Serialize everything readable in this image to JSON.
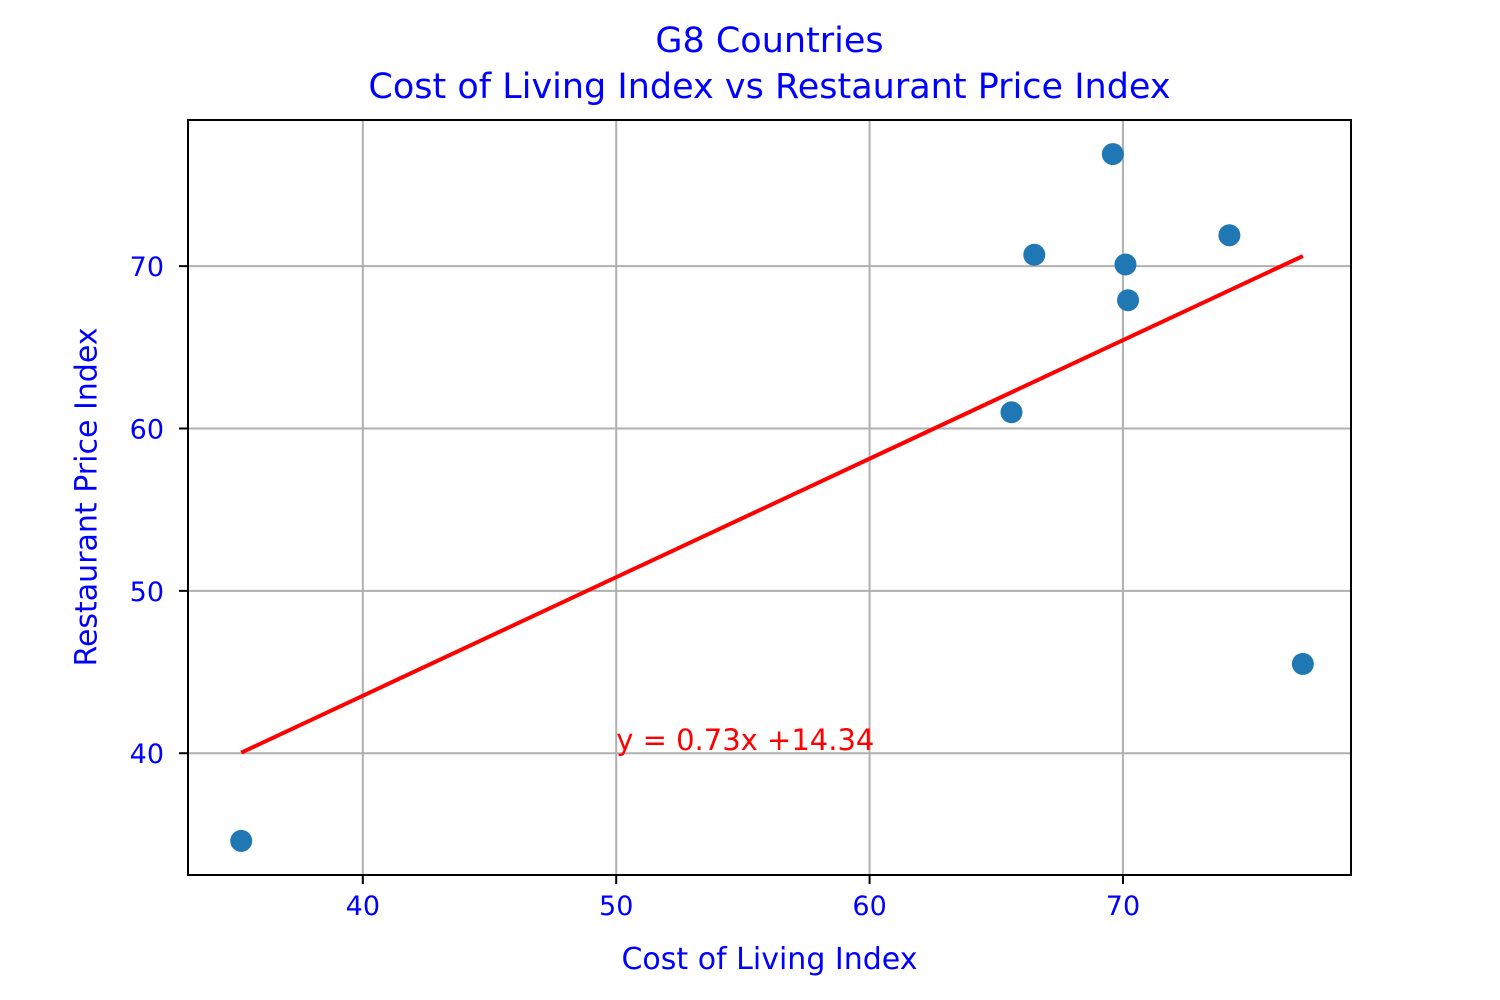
{
  "chart_data": {
    "type": "scatter",
    "title": "G8 Countries",
    "subtitle": "Cost of Living Index vs Restaurant Price Index",
    "xlabel": "Cost of Living Index",
    "ylabel": "Restaurant Price Index",
    "xlim": [
      33.1,
      79.0
    ],
    "ylim": [
      32.5,
      79.0
    ],
    "xticks": [
      40,
      50,
      60,
      70
    ],
    "yticks": [
      40,
      50,
      60,
      70
    ],
    "grid": true,
    "points": [
      {
        "x": 35.2,
        "y": 34.6
      },
      {
        "x": 65.6,
        "y": 61.0
      },
      {
        "x": 66.5,
        "y": 70.7
      },
      {
        "x": 69.6,
        "y": 76.9
      },
      {
        "x": 70.1,
        "y": 70.1
      },
      {
        "x": 70.2,
        "y": 67.9
      },
      {
        "x": 74.2,
        "y": 71.9
      },
      {
        "x": 77.1,
        "y": 45.5
      }
    ],
    "regression": {
      "slope": 0.73,
      "intercept": 14.34,
      "x_range": [
        35.2,
        77.1
      ]
    },
    "annotation": {
      "text": "y = 0.73x +14.34",
      "x": 50,
      "y": 40.2
    },
    "colors": {
      "points": "#1f77b4",
      "regression": "#ff0000",
      "text": "#0000ff",
      "grid": "#b0b0b0"
    }
  }
}
